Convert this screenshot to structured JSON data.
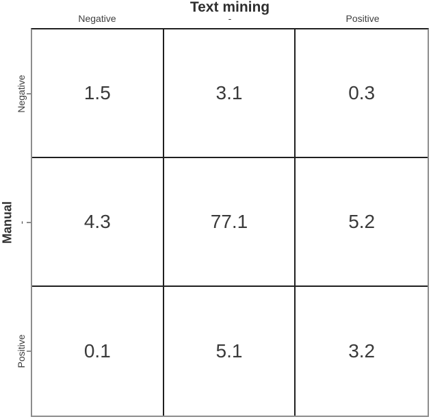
{
  "chart_data": {
    "type": "heatmap",
    "title": "",
    "xlabel": "Text mining",
    "ylabel": "Manual",
    "x_categories": [
      "Negative",
      "-",
      "Positive"
    ],
    "y_categories": [
      "Negative",
      "-",
      "Positive"
    ],
    "matrix": [
      [
        1.5,
        3.1,
        0.3
      ],
      [
        4.3,
        77.1,
        5.2
      ],
      [
        0.1,
        5.1,
        3.2
      ]
    ],
    "layout": {
      "x_axis_position": "top",
      "y_axis_position": "left",
      "legend": "none",
      "grid": "on",
      "cell_background": "#ffffff"
    },
    "colors": {
      "outer_border": "#8c8c8c",
      "top_border": "#1f1f1f",
      "inner_grid_lines": "#1f1f1f",
      "value_text": "#3a3a3a",
      "tick_label_text": "#3d3d3d",
      "axis_title_text": "#2f2f2f",
      "background": "#ffffff"
    }
  }
}
